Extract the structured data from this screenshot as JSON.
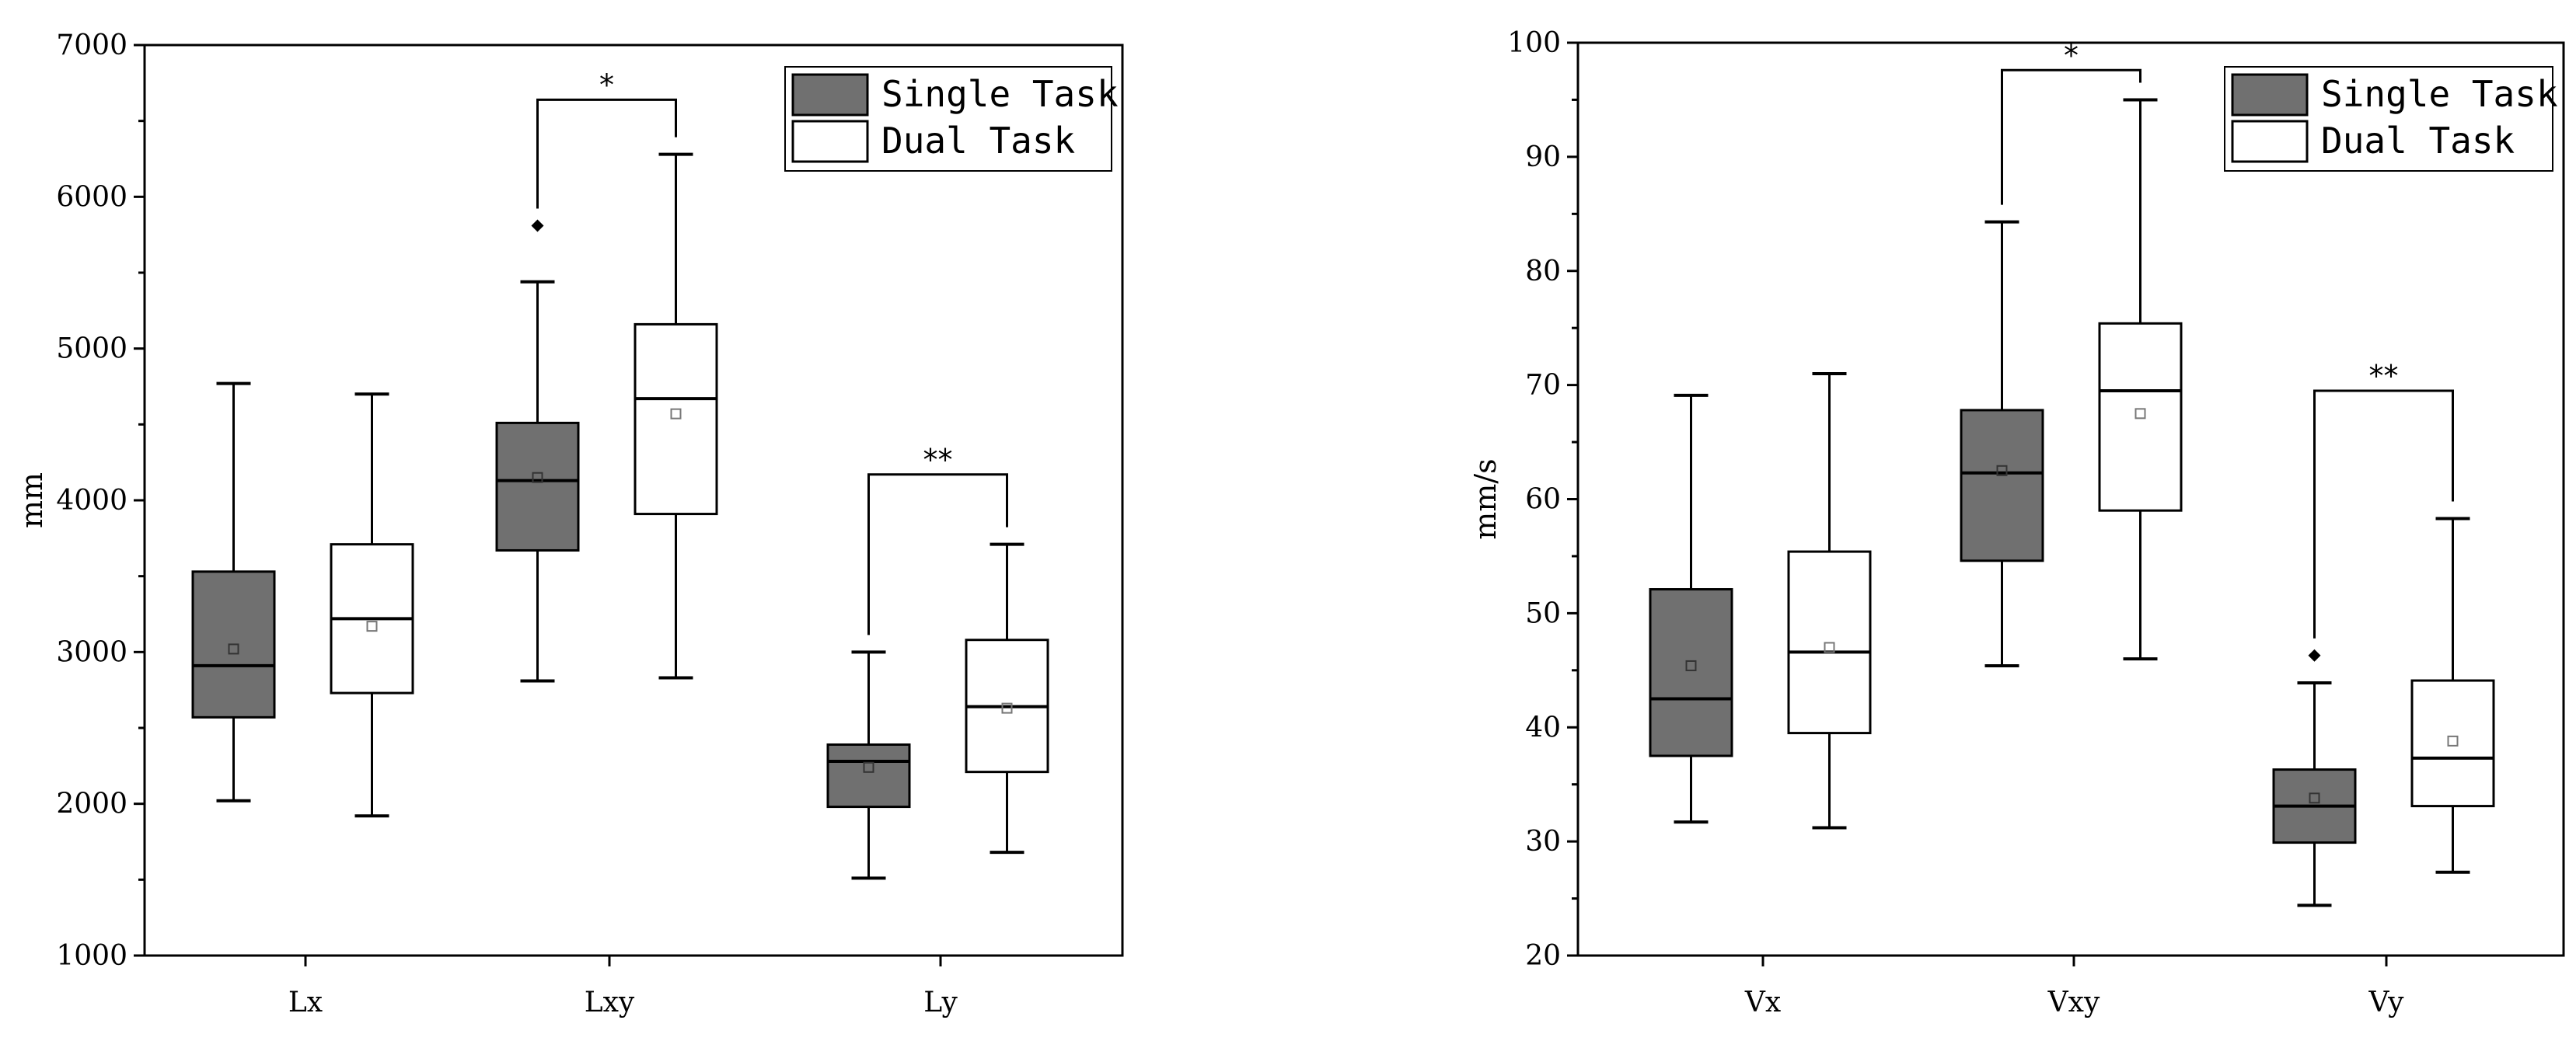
{
  "colors": {
    "single": "#707070",
    "dual": "#ffffff",
    "stroke": "#000000"
  },
  "chart_data": [
    {
      "type": "box",
      "ylabel": "mm",
      "ylim": [
        1000,
        7000
      ],
      "yticks": [
        "1000",
        "2000",
        "3000",
        "4000",
        "5000",
        "6000",
        "7000"
      ],
      "categories": [
        "Lx",
        "Lxy",
        "Ly"
      ],
      "legend": {
        "position": "top-right",
        "entries": [
          "Single Task",
          "Dual Task"
        ]
      },
      "series": [
        {
          "name": "Single Task",
          "boxes": [
            {
              "min": 2020,
              "q1": 2570,
              "median": 2910,
              "q3": 3530,
              "max": 4770,
              "mean": 3020,
              "outliers": []
            },
            {
              "min": 2810,
              "q1": 3670,
              "median": 4130,
              "q3": 4510,
              "max": 5440,
              "mean": 4150,
              "outliers": [
                5810
              ]
            },
            {
              "min": 1510,
              "q1": 1980,
              "median": 2280,
              "q3": 2390,
              "max": 3000,
              "mean": 2240,
              "outliers": []
            }
          ]
        },
        {
          "name": "Dual Task",
          "boxes": [
            {
              "min": 1920,
              "q1": 2730,
              "median": 3220,
              "q3": 3710,
              "max": 4700,
              "mean": 3170,
              "outliers": []
            },
            {
              "min": 2830,
              "q1": 3910,
              "median": 4670,
              "q3": 5160,
              "max": 6280,
              "mean": 4570,
              "outliers": []
            },
            {
              "min": 1680,
              "q1": 2210,
              "median": 2640,
              "q3": 3080,
              "max": 3710,
              "mean": 2630,
              "outliers": []
            }
          ]
        }
      ],
      "annotations": [
        {
          "category": 1,
          "label": "*",
          "y": 6640
        },
        {
          "category": 2,
          "label": "**",
          "y": 4170
        }
      ]
    },
    {
      "type": "box",
      "ylabel": "mm/s",
      "ylim": [
        20,
        100
      ],
      "yticks": [
        "20",
        "30",
        "40",
        "50",
        "60",
        "70",
        "80",
        "90",
        "100"
      ],
      "categories": [
        "Vx",
        "Vxy",
        "Vy"
      ],
      "legend": {
        "position": "top-right",
        "entries": [
          "Single Task",
          "Dual Task"
        ]
      },
      "series": [
        {
          "name": "Single Task",
          "boxes": [
            {
              "min": 31.7,
              "q1": 37.5,
              "median": 42.5,
              "q3": 52.1,
              "max": 69.1,
              "mean": 45.4,
              "outliers": []
            },
            {
              "min": 45.4,
              "q1": 54.6,
              "median": 62.3,
              "q3": 67.8,
              "max": 84.3,
              "mean": 62.5,
              "outliers": []
            },
            {
              "min": 24.4,
              "q1": 29.9,
              "median": 33.1,
              "q3": 36.3,
              "max": 43.9,
              "mean": 33.8,
              "outliers": [
                46.3
              ]
            }
          ]
        },
        {
          "name": "Dual Task",
          "boxes": [
            {
              "min": 31.2,
              "q1": 39.5,
              "median": 46.6,
              "q3": 55.4,
              "max": 71.0,
              "mean": 47.0,
              "outliers": []
            },
            {
              "min": 46.0,
              "q1": 59.0,
              "median": 69.5,
              "q3": 75.4,
              "max": 95.0,
              "mean": 67.5,
              "outliers": []
            },
            {
              "min": 27.3,
              "q1": 33.1,
              "median": 37.3,
              "q3": 44.1,
              "max": 58.3,
              "mean": 38.8,
              "outliers": []
            }
          ]
        }
      ],
      "annotations": [
        {
          "category": 1,
          "label": "*",
          "y": 97.6
        },
        {
          "category": 2,
          "label": "**",
          "y": 69.5
        }
      ]
    }
  ]
}
